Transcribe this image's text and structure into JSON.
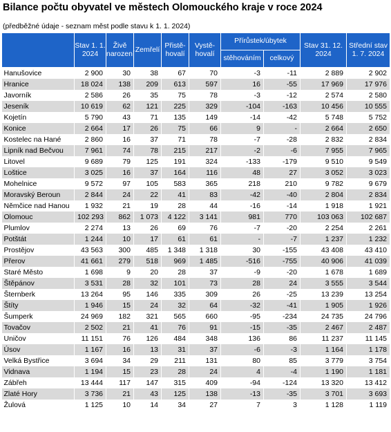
{
  "title": "Bilance počtu obyvatel ve městech Olomouckého kraje v roce 2024",
  "note": "(předběžné údaje - seznam měst podle stavu k 1. 1. 2024)",
  "headers": {
    "stav_start": "Stav 1. 1. 2024",
    "zive": "Živě narození",
    "zemreli": "Zemřelí",
    "pristehovali": "Přistě-hovalí",
    "vystehovali": "Vystě-hovalí",
    "prirustek": "Přírůstek/úbytek",
    "stehovanim": "stěhováním",
    "celkovy": "celkový",
    "stav_end": "Stav 31. 12. 2024",
    "stredni": "Střední stav 1. 7. 2024"
  },
  "rows": [
    [
      "Hanušovice",
      "2 900",
      "30",
      "38",
      "67",
      "70",
      "-3",
      "-11",
      "2 889",
      "2 902"
    ],
    [
      "Hranice",
      "18 024",
      "138",
      "209",
      "613",
      "597",
      "16",
      "-55",
      "17 969",
      "17 976"
    ],
    [
      "Javorník",
      "2 586",
      "26",
      "35",
      "75",
      "78",
      "-3",
      "-12",
      "2 574",
      "2 580"
    ],
    [
      "Jeseník",
      "10 619",
      "62",
      "121",
      "225",
      "329",
      "-104",
      "-163",
      "10 456",
      "10 555"
    ],
    [
      "Kojetín",
      "5 790",
      "43",
      "71",
      "135",
      "149",
      "-14",
      "-42",
      "5 748",
      "5 752"
    ],
    [
      "Konice",
      "2 664",
      "17",
      "26",
      "75",
      "66",
      "9",
      "-",
      "2 664",
      "2 650"
    ],
    [
      "Kostelec na Hané",
      "2 860",
      "16",
      "37",
      "71",
      "78",
      "-7",
      "-28",
      "2 832",
      "2 834"
    ],
    [
      "Lipník nad Bečvou",
      "7 961",
      "74",
      "78",
      "215",
      "217",
      "-2",
      "-6",
      "7 955",
      "7 965"
    ],
    [
      "Litovel",
      "9 689",
      "79",
      "125",
      "191",
      "324",
      "-133",
      "-179",
      "9 510",
      "9 549"
    ],
    [
      "Loštice",
      "3 025",
      "16",
      "37",
      "164",
      "116",
      "48",
      "27",
      "3 052",
      "3 023"
    ],
    [
      "Mohelnice",
      "9 572",
      "97",
      "105",
      "583",
      "365",
      "218",
      "210",
      "9 782",
      "9 679"
    ],
    [
      "Moravský Beroun",
      "2 844",
      "24",
      "22",
      "41",
      "83",
      "-42",
      "-40",
      "2 804",
      "2 834"
    ],
    [
      "Němčice nad Hanou",
      "1 932",
      "21",
      "19",
      "28",
      "44",
      "-16",
      "-14",
      "1 918",
      "1 921"
    ],
    [
      "Olomouc",
      "102 293",
      "862",
      "1 073",
      "4 122",
      "3 141",
      "981",
      "770",
      "103 063",
      "102 687"
    ],
    [
      "Plumlov",
      "2 274",
      "13",
      "26",
      "69",
      "76",
      "-7",
      "-20",
      "2 254",
      "2 261"
    ],
    [
      "Potštát",
      "1 244",
      "10",
      "17",
      "61",
      "61",
      "-",
      "-7",
      "1 237",
      "1 232"
    ],
    [
      "Prostějov",
      "43 563",
      "300",
      "485",
      "1 348",
      "1 318",
      "30",
      "-155",
      "43 408",
      "43 410"
    ],
    [
      "Přerov",
      "41 661",
      "279",
      "518",
      "969",
      "1 485",
      "-516",
      "-755",
      "40 906",
      "41 039"
    ],
    [
      "Staré Město",
      "1 698",
      "9",
      "20",
      "28",
      "37",
      "-9",
      "-20",
      "1 678",
      "1 689"
    ],
    [
      "Štěpánov",
      "3 531",
      "28",
      "32",
      "101",
      "73",
      "28",
      "24",
      "3 555",
      "3 544"
    ],
    [
      "Šternberk",
      "13 264",
      "95",
      "146",
      "335",
      "309",
      "26",
      "-25",
      "13 239",
      "13 254"
    ],
    [
      "Štíty",
      "1 946",
      "15",
      "24",
      "32",
      "64",
      "-32",
      "-41",
      "1 905",
      "1 926"
    ],
    [
      "Šumperk",
      "24 969",
      "182",
      "321",
      "565",
      "660",
      "-95",
      "-234",
      "24 735",
      "24 796"
    ],
    [
      "Tovačov",
      "2 502",
      "21",
      "41",
      "76",
      "91",
      "-15",
      "-35",
      "2 467",
      "2 487"
    ],
    [
      "Uničov",
      "11 151",
      "76",
      "126",
      "484",
      "348",
      "136",
      "86",
      "11 237",
      "11 145"
    ],
    [
      "Úsov",
      "1 167",
      "16",
      "13",
      "31",
      "37",
      "-6",
      "-3",
      "1 164",
      "1 178"
    ],
    [
      "Velká Bystřice",
      "3 694",
      "34",
      "29",
      "211",
      "131",
      "80",
      "85",
      "3 779",
      "3 754"
    ],
    [
      "Vidnava",
      "1 194",
      "15",
      "23",
      "28",
      "24",
      "4",
      "-4",
      "1 190",
      "1 181"
    ],
    [
      "Zábřeh",
      "13 444",
      "117",
      "147",
      "315",
      "409",
      "-94",
      "-124",
      "13 320",
      "13 412"
    ],
    [
      "Zlaté Hory",
      "3 736",
      "21",
      "43",
      "125",
      "138",
      "-13",
      "-35",
      "3 701",
      "3 693"
    ],
    [
      "Žulová",
      "1 125",
      "10",
      "14",
      "34",
      "27",
      "7",
      "3",
      "1 128",
      "1 119"
    ]
  ]
}
